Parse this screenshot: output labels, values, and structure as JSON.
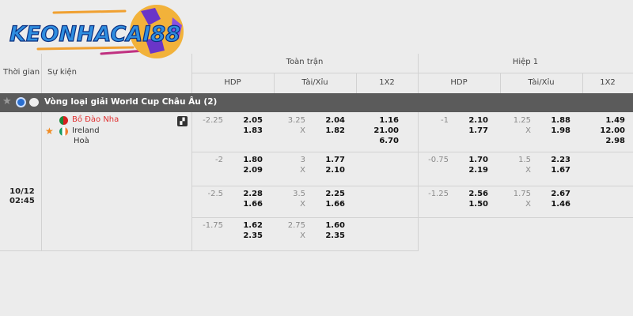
{
  "brand": {
    "logo_text": "KEONHACAI88"
  },
  "header": {
    "time": "Thời gian",
    "event": "Sự kiện",
    "full_match": "Toàn trận",
    "half1": "Hiệp 1",
    "cols": [
      "HDP",
      "Tài/Xỉu",
      "1X2",
      "HDP",
      "Tài/Xỉu",
      "1X2"
    ]
  },
  "league": {
    "name": "Vòng loại giải World Cup Châu Âu (2)"
  },
  "match": {
    "date": "10/12",
    "time": "02:45",
    "home": "Bồ Đào Nha",
    "away": "Ireland",
    "draw": "Hoà",
    "home_color": "#e03030"
  },
  "full_match": [
    {
      "hdp_line": "-2.25",
      "hdp": [
        "2.05",
        "1.83"
      ],
      "ou_line": "3.25",
      "ou_x": "X",
      "ou": [
        "2.04",
        "1.82"
      ],
      "x12": [
        "1.16",
        "21.00",
        "6.70"
      ]
    },
    {
      "hdp_line": "-2",
      "hdp": [
        "1.80",
        "2.09"
      ],
      "ou_line": "3",
      "ou_x": "X",
      "ou": [
        "1.77",
        "2.10"
      ],
      "x12": []
    },
    {
      "hdp_line": "-2.5",
      "hdp": [
        "2.28",
        "1.66"
      ],
      "ou_line": "3.5",
      "ou_x": "X",
      "ou": [
        "2.25",
        "1.66"
      ],
      "x12": []
    },
    {
      "hdp_line": "-1.75",
      "hdp": [
        "1.62",
        "2.35"
      ],
      "ou_line": "2.75",
      "ou_x": "X",
      "ou": [
        "1.60",
        "2.35"
      ],
      "x12": []
    }
  ],
  "half1": [
    {
      "hdp_line": "-1",
      "hdp": [
        "2.10",
        "1.77"
      ],
      "ou_line": "1.25",
      "ou_x": "X",
      "ou": [
        "1.88",
        "1.98"
      ],
      "x12": [
        "1.49",
        "12.00",
        "2.98"
      ]
    },
    {
      "hdp_line": "-0.75",
      "hdp": [
        "1.70",
        "2.19"
      ],
      "ou_line": "1.5",
      "ou_x": "X",
      "ou": [
        "2.23",
        "1.67"
      ],
      "x12": []
    },
    {
      "hdp_line": "-1.25",
      "hdp": [
        "2.56",
        "1.50"
      ],
      "ou_line": "1.75",
      "ou_x": "X",
      "ou": [
        "2.67",
        "1.46"
      ],
      "x12": []
    }
  ]
}
